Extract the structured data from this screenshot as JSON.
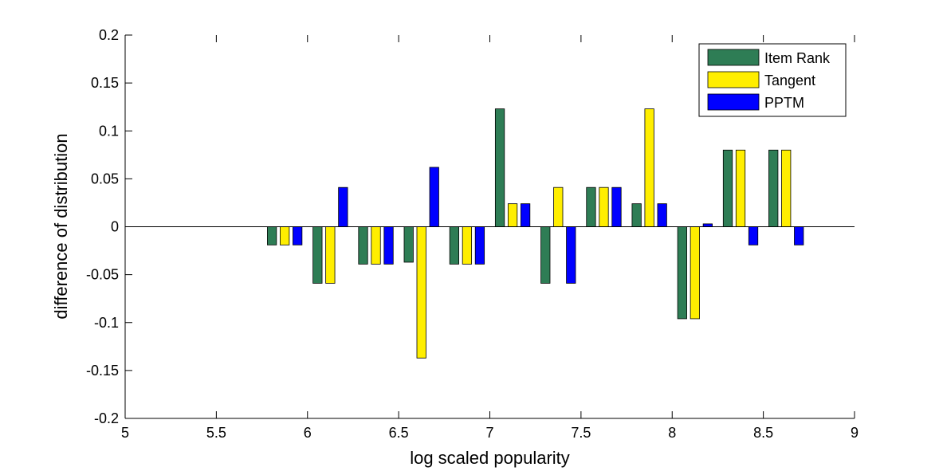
{
  "chart_data": {
    "type": "bar",
    "xlabel": "log scaled popularity",
    "ylabel": "difference of distribution",
    "xlim": [
      5,
      9
    ],
    "ylim": [
      -0.2,
      0.2
    ],
    "xticks": [
      "5",
      "5.5",
      "6",
      "6.5",
      "7",
      "7.5",
      "8",
      "8.5",
      "9"
    ],
    "yticks": [
      "0.2",
      "0.15",
      "0.1",
      "0.05",
      "0",
      "-0.05",
      "-0.1",
      "-0.15",
      "-0.2"
    ],
    "grid": false,
    "legend_position": "top-right",
    "x": [
      5.875,
      6.125,
      6.375,
      6.625,
      6.875,
      7.125,
      7.375,
      7.625,
      7.875,
      8.125,
      8.375,
      8.625
    ],
    "series": [
      {
        "name": "Item Rank",
        "color": "#2e7d55",
        "values": [
          -0.019,
          -0.059,
          -0.039,
          -0.037,
          -0.039,
          0.123,
          -0.059,
          0.041,
          0.024,
          -0.096,
          0.08,
          0.08
        ]
      },
      {
        "name": "Tangent",
        "color": "#ffee00",
        "values": [
          -0.019,
          -0.059,
          -0.039,
          -0.137,
          -0.039,
          0.024,
          0.041,
          0.041,
          0.123,
          -0.096,
          0.08,
          0.08
        ]
      },
      {
        "name": "PPTM",
        "color": "#0000ff",
        "values": [
          -0.019,
          0.041,
          -0.039,
          0.062,
          -0.039,
          0.024,
          -0.059,
          0.041,
          0.024,
          0.003,
          -0.019,
          -0.019
        ]
      }
    ]
  }
}
